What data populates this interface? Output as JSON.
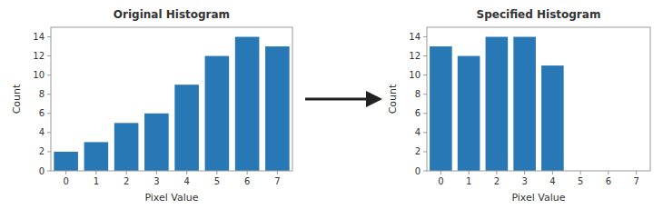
{
  "chart_data": [
    {
      "type": "bar",
      "title": "Original Histogram",
      "xlabel": "Pixel Value",
      "ylabel": "Count",
      "x": [
        0,
        1,
        2,
        3,
        4,
        5,
        6,
        7
      ],
      "values": [
        2,
        3,
        5,
        6,
        9,
        12,
        14,
        13
      ],
      "color": "#2878b5",
      "xlim": [
        -0.5,
        7.5
      ],
      "ylim": [
        0,
        15
      ],
      "xticks": [
        0,
        1,
        2,
        3,
        4,
        5,
        6,
        7
      ],
      "yticks": [
        0,
        2,
        4,
        6,
        8,
        10,
        12,
        14
      ],
      "grid": false
    },
    {
      "type": "bar",
      "title": "Specified Histogram",
      "xlabel": "Pixel Value",
      "ylabel": "Count",
      "x": [
        0,
        1,
        2,
        3,
        4
      ],
      "values": [
        13,
        12,
        14,
        14,
        11
      ],
      "color": "#2878b5",
      "xlim": [
        -0.5,
        7.5
      ],
      "ylim": [
        0,
        15
      ],
      "xticks": [
        0,
        1,
        2,
        3,
        4,
        5,
        6,
        7
      ],
      "yticks": [
        0,
        2,
        4,
        6,
        8,
        10,
        12,
        14
      ],
      "grid": false
    }
  ]
}
